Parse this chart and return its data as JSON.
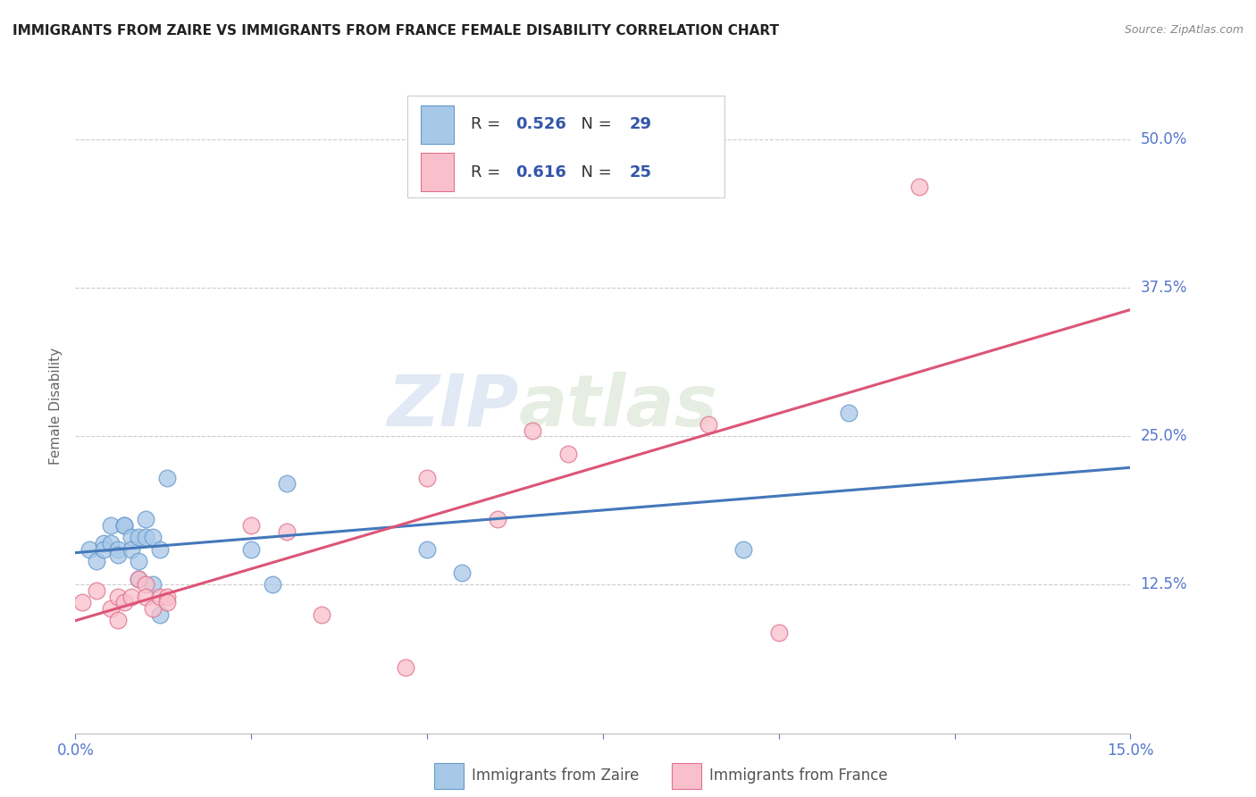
{
  "title": "IMMIGRANTS FROM ZAIRE VS IMMIGRANTS FROM FRANCE FEMALE DISABILITY CORRELATION CHART",
  "source": "Source: ZipAtlas.com",
  "ylabel": "Female Disability",
  "xlim": [
    0.0,
    0.15
  ],
  "ylim": [
    0.0,
    0.55
  ],
  "xticks": [
    0.0,
    0.025,
    0.05,
    0.075,
    0.1,
    0.125,
    0.15
  ],
  "xtick_labels": [
    "0.0%",
    "",
    "",
    "",
    "",
    "",
    "15.0%"
  ],
  "ytick_labels": [
    "12.5%",
    "25.0%",
    "37.5%",
    "50.0%"
  ],
  "ytick_values": [
    0.125,
    0.25,
    0.375,
    0.5
  ],
  "background_color": "#ffffff",
  "grid_color": "#cccccc",
  "zaire_color": "#a8c8e8",
  "france_color": "#f9c0cb",
  "zaire_edge_color": "#6699cc",
  "france_edge_color": "#e07090",
  "zaire_line_color": "#4477bb",
  "france_line_color": "#dd5577",
  "legend_text_color": "#3355aa",
  "title_color": "#222222",
  "source_color": "#888888",
  "ylabel_color": "#666666",
  "tick_color": "#5577cc",
  "zaire_R": "0.526",
  "zaire_N": "29",
  "france_R": "0.616",
  "france_N": "25",
  "watermark": "ZIPatlas",
  "legend_label_zaire": "Immigrants from Zaire",
  "legend_label_france": "Immigrants from France",
  "zaire_x": [
    0.002,
    0.003,
    0.004,
    0.004,
    0.005,
    0.005,
    0.006,
    0.006,
    0.007,
    0.007,
    0.008,
    0.008,
    0.009,
    0.009,
    0.009,
    0.01,
    0.01,
    0.011,
    0.011,
    0.012,
    0.012,
    0.013,
    0.025,
    0.028,
    0.03,
    0.05,
    0.055,
    0.095,
    0.11
  ],
  "zaire_y": [
    0.155,
    0.145,
    0.16,
    0.155,
    0.175,
    0.16,
    0.155,
    0.15,
    0.175,
    0.175,
    0.165,
    0.155,
    0.165,
    0.145,
    0.13,
    0.18,
    0.165,
    0.165,
    0.125,
    0.155,
    0.1,
    0.215,
    0.155,
    0.125,
    0.21,
    0.155,
    0.135,
    0.155,
    0.27
  ],
  "france_x": [
    0.001,
    0.003,
    0.005,
    0.006,
    0.006,
    0.007,
    0.008,
    0.009,
    0.01,
    0.01,
    0.011,
    0.012,
    0.013,
    0.013,
    0.025,
    0.03,
    0.035,
    0.047,
    0.05,
    0.06,
    0.065,
    0.07,
    0.09,
    0.1,
    0.12
  ],
  "france_y": [
    0.11,
    0.12,
    0.105,
    0.095,
    0.115,
    0.11,
    0.115,
    0.13,
    0.125,
    0.115,
    0.105,
    0.115,
    0.115,
    0.11,
    0.175,
    0.17,
    0.1,
    0.055,
    0.215,
    0.18,
    0.255,
    0.235,
    0.26,
    0.085,
    0.46
  ]
}
